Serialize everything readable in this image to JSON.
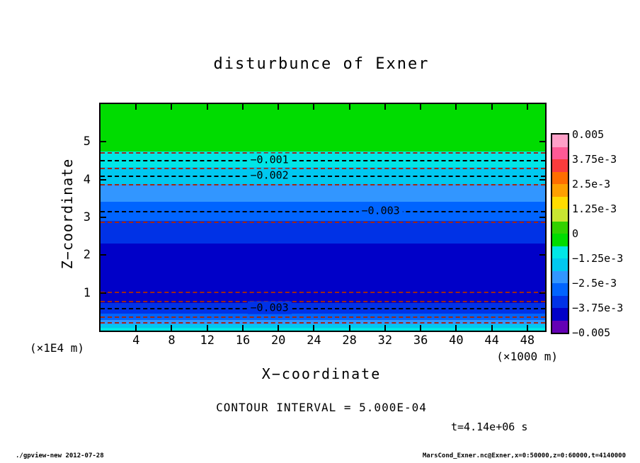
{
  "footer": {
    "left": "./gpview-new  2012-07-28",
    "right": "MarsCond_Exner.nc@Exner,x=0:50000,z=0:60000,t=4140000"
  },
  "colors": {
    "background": "#FFFFFF",
    "frame": "#000000",
    "contour_minor_line": "#A02814",
    "contour_major_line": "#000000"
  },
  "chart_data": {
    "type": "heatmap",
    "subtype": "filled-contour-plot",
    "title": "disturbunce of Exner",
    "xlabel": "X−coordinate",
    "ylabel": "Z−coordinate",
    "x_unit": "(×1000 m)",
    "y_unit": "(×1E4 m)",
    "xlim": [
      0,
      50
    ],
    "ylim": [
      0,
      6
    ],
    "x_ticks": [
      4,
      8,
      12,
      16,
      20,
      24,
      28,
      32,
      36,
      40,
      44,
      48
    ],
    "y_ticks": [
      1,
      2,
      3,
      4,
      5
    ],
    "grid": false,
    "legend_position": "right",
    "contour_interval": 0.0005,
    "contour_interval_label": "CONTOUR INTERVAL = 5.000E-04",
    "time_label": "t=4.14e+06 s",
    "bands": [
      {
        "z_top": 6.0,
        "z_bottom": 4.74,
        "color": "#00DC00",
        "value_range": "-6.25e-4 to 0"
      },
      {
        "z_top": 4.74,
        "z_bottom": 4.33,
        "color": "#00E6E6",
        "value_range": "-1.25e-3 to -6.25e-4"
      },
      {
        "z_top": 4.33,
        "z_bottom": 3.88,
        "color": "#00C8F0",
        "value_range": "-1.875e-3 to -1.25e-3"
      },
      {
        "z_top": 3.88,
        "z_bottom": 3.41,
        "color": "#3296FF",
        "value_range": "-2.5e-3 to -1.875e-3"
      },
      {
        "z_top": 3.41,
        "z_bottom": 2.91,
        "color": "#0064FF",
        "value_range": "-3.125e-3 to -2.5e-3"
      },
      {
        "z_top": 2.91,
        "z_bottom": 2.31,
        "color": "#0032E6",
        "value_range": "-3.75e-3 to -3.125e-3"
      },
      {
        "z_top": 2.31,
        "z_bottom": 0.73,
        "color": "#0000C8",
        "value_range": "-4.375e-3 to -3.75e-3"
      },
      {
        "z_top": 0.73,
        "z_bottom": 0.45,
        "color": "#0032E6",
        "value_range": "-3.75e-3 to -3.125e-3"
      },
      {
        "z_top": 0.45,
        "z_bottom": 0.28,
        "color": "#0064FF",
        "value_range": "-3.125e-3 to -2.5e-3"
      },
      {
        "z_top": 0.28,
        "z_bottom": 0.17,
        "color": "#3296FF",
        "value_range": "-2.5e-3 to -1.875e-3"
      },
      {
        "z_top": 0.17,
        "z_bottom": 0.075,
        "color": "#00C8F0",
        "value_range": "-1.875e-3 to -1.25e-3"
      },
      {
        "z_top": 0.075,
        "z_bottom": 0.0,
        "color": "#00E6E6",
        "value_range": "-1.25e-3 to -6.25e-4"
      }
    ],
    "contour_lines": [
      {
        "z": 4.72,
        "level": -0.0005,
        "style": "minor"
      },
      {
        "z": 4.52,
        "level": -0.001,
        "style": "major",
        "label": "−0.001",
        "label_x": 19,
        "label_bg": "#00E6E6"
      },
      {
        "z": 4.31,
        "level": -0.0015,
        "style": "minor"
      },
      {
        "z": 4.11,
        "level": -0.002,
        "style": "major",
        "label": "−0.002",
        "label_x": 19,
        "label_bg": "#00C8F0"
      },
      {
        "z": 3.88,
        "level": -0.0025,
        "style": "minor"
      },
      {
        "z": 3.17,
        "level": -0.003,
        "style": "major",
        "label": "−0.003",
        "label_x": 31.5,
        "label_bg": "#0064FF"
      },
      {
        "z": 2.89,
        "level": -0.0035,
        "style": "minor"
      },
      {
        "z": 1.03,
        "level": -0.004,
        "style": "minor"
      },
      {
        "z": 0.79,
        "level": -0.0035,
        "style": "minor"
      },
      {
        "z": 0.6,
        "level": -0.003,
        "style": "major",
        "label": "−0.003",
        "label_x": 19,
        "label_bg": "#0032E6"
      },
      {
        "z": 0.375,
        "level": -0.0025,
        "style": "minor"
      },
      {
        "z": 0.225,
        "level": -0.002,
        "style": "minor"
      }
    ],
    "colorbar": {
      "vmin": -0.005,
      "vmax": 0.005,
      "labels": [
        "0.005",
        "3.75e-3",
        "2.5e-3",
        "1.25e-3",
        "0",
        "−1.25e-3",
        "−2.5e-3",
        "−3.75e-3",
        "−0.005"
      ],
      "colors_top_to_bottom": [
        "#FFA0C8",
        "#FF5A96",
        "#FA3C3C",
        "#FF6E00",
        "#FFA000",
        "#FFDC00",
        "#C8E632",
        "#32D200",
        "#00DC00",
        "#00E6E6",
        "#00C8F0",
        "#3296FF",
        "#0064FF",
        "#0032E6",
        "#0000C8",
        "#6400B4"
      ]
    }
  }
}
